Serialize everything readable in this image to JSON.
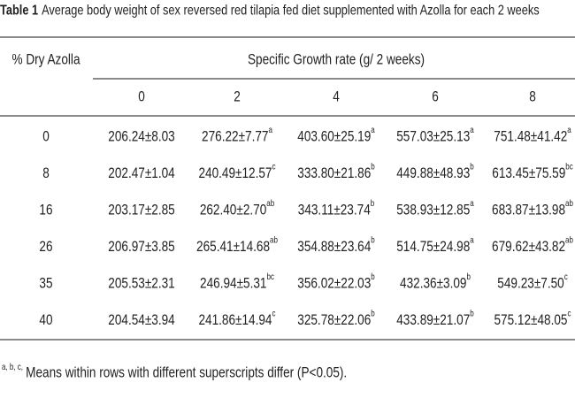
{
  "title": {
    "label": "Table 1",
    "text": "Average body weight of sex reversed red tilapia fed diet supplemented with Azolla for each 2 weeks"
  },
  "table": {
    "row_header": "% Dry Azolla",
    "group_header": "Specific Growth rate  (g/ 2 weeks)",
    "columns": [
      "0",
      "2",
      "4",
      "6",
      "8"
    ],
    "rows": [
      {
        "label": "0",
        "cells": [
          {
            "main": "206.24±8.03"
          },
          {
            "main": "276.22±7.77",
            "sup": "a"
          },
          {
            "main": "403.60±25.19",
            "sup": "a"
          },
          {
            "main": "557.03±25.13",
            "sup": "a"
          },
          {
            "main": "751.48±41.42",
            "sup": "a"
          }
        ]
      },
      {
        "label": "8",
        "cells": [
          {
            "main": "202.47±1.04"
          },
          {
            "main": "240.49±12.57",
            "sup": "c"
          },
          {
            "main": "333.80±21.86",
            "sup": "b"
          },
          {
            "main": "449.88±48.93",
            "sup": "b"
          },
          {
            "main": "613.45±75.59",
            "sup": "bc"
          }
        ]
      },
      {
        "label": "16",
        "cells": [
          {
            "main": "203.17±2.85"
          },
          {
            "main": "262.40±2.70",
            "sup": "ab"
          },
          {
            "main": "343.11±23.74",
            "sup": "b"
          },
          {
            "main": "538.93±12.85",
            "sup": "a"
          },
          {
            "main": "683.87±13.98",
            "sup": "ab"
          }
        ]
      },
      {
        "label": "26",
        "cells": [
          {
            "main": "206.97±3.85"
          },
          {
            "main": "265.41±14.68",
            "sup": "ab"
          },
          {
            "main": "354.88±23.64",
            "sup": "b"
          },
          {
            "main": "514.75±24.98",
            "sup": "a"
          },
          {
            "main": "679.62±43.82",
            "sup": "ab"
          }
        ]
      },
      {
        "label": "35",
        "cells": [
          {
            "main": "205.53±2.31"
          },
          {
            "main": "246.94±5.31",
            "sup": "bc"
          },
          {
            "main": "356.02±22.03",
            "sup": "b"
          },
          {
            "main": "432.36±3.09",
            "sup": "b"
          },
          {
            "main": "549.23±7.50",
            "sup": "c"
          }
        ]
      },
      {
        "label": "40",
        "cells": [
          {
            "main": "204.54±3.94"
          },
          {
            "main": "241.86±14.94",
            "sup": "c"
          },
          {
            "main": "325.78±22.06",
            "sup": "b"
          },
          {
            "main": "433.89±21.07",
            "sup": "b"
          },
          {
            "main": "575.12±48.05",
            "sup": "c"
          }
        ]
      }
    ]
  },
  "footnote": {
    "sup": "a, b, c,",
    "text": "Means within rows with different superscripts differ (P<0.05)."
  }
}
